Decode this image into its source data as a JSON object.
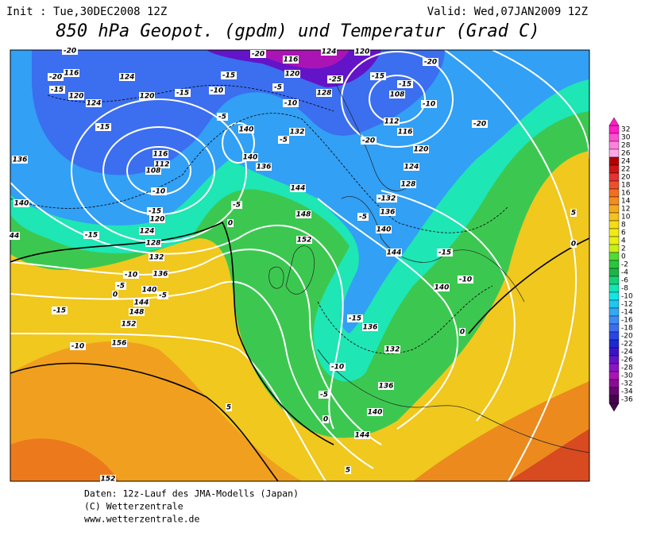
{
  "header": {
    "init": "Init : Tue,30DEC2008 12Z",
    "valid": "Valid: Wed,07JAN2009 12Z",
    "title": "850 hPa Geopot. (gpdm) und Temperatur (Grad C)"
  },
  "colorbar": {
    "labels": [
      32,
      30,
      28,
      26,
      24,
      22,
      20,
      18,
      16,
      14,
      12,
      10,
      8,
      6,
      4,
      2,
      0,
      -2,
      -4,
      -6,
      -8,
      -10,
      -12,
      -14,
      -16,
      -18,
      -20,
      -22,
      -24,
      -26,
      -28,
      -30,
      -32,
      -34,
      -36
    ],
    "colors": [
      "#ff1ec8",
      "#ff50d2",
      "#ff82dc",
      "#ffaae6",
      "#b40000",
      "#d21414",
      "#e63232",
      "#f05028",
      "#f56e1e",
      "#f58c1e",
      "#f5aa1e",
      "#f5c31e",
      "#f5dc14",
      "#f0eb14",
      "#e6f014",
      "#c8f014",
      "#50dc32",
      "#28c83c",
      "#1eb446",
      "#14d278",
      "#14e6b4",
      "#14e6e6",
      "#1ec8f0",
      "#32aaf5",
      "#3c8cf5",
      "#3c6ef0",
      "#2846e6",
      "#1e28d2",
      "#3c14c8",
      "#6414c8",
      "#8c14c8",
      "#aa14b4",
      "#8c0a96",
      "#64086e",
      "#46064e"
    ]
  },
  "map": {
    "labels": [
      "-20",
      "-20",
      "116",
      "-15",
      "120",
      "124",
      "124",
      "120",
      "-15",
      "-15",
      "-10",
      "-15",
      "-5",
      "140",
      "140",
      "136",
      "-20",
      "116",
      "120",
      "-5",
      "-10",
      "128",
      "-25",
      "132",
      "-5",
      "124",
      "120",
      "-15",
      "-15",
      "108",
      "-10",
      "-20",
      "-20",
      "112",
      "116",
      "-20",
      "120",
      "124",
      "128",
      "136",
      "116",
      "112",
      "108",
      "-10",
      "144",
      "148",
      "-5",
      "0",
      "-15",
      "120",
      "124",
      "128",
      "-15",
      "140",
      "44",
      "132",
      "136",
      "-10",
      "140",
      "-5",
      "0",
      "-5",
      "144",
      "148",
      "152",
      "156",
      "-10",
      "-15",
      "152",
      "-132",
      "136",
      "-5",
      "140",
      "144",
      "-15",
      "-10",
      "140",
      "-15",
      "136",
      "0",
      "132",
      "-10",
      "136",
      "-5",
      "140",
      "0",
      "144",
      "5",
      "5",
      "0",
      "5",
      "152"
    ]
  },
  "footer": {
    "lines": [
      "Daten: 12z-Lauf des JMA-Modells (Japan)",
      "(C) Wetterzentrale",
      "www.wetterzentrale.de"
    ]
  }
}
